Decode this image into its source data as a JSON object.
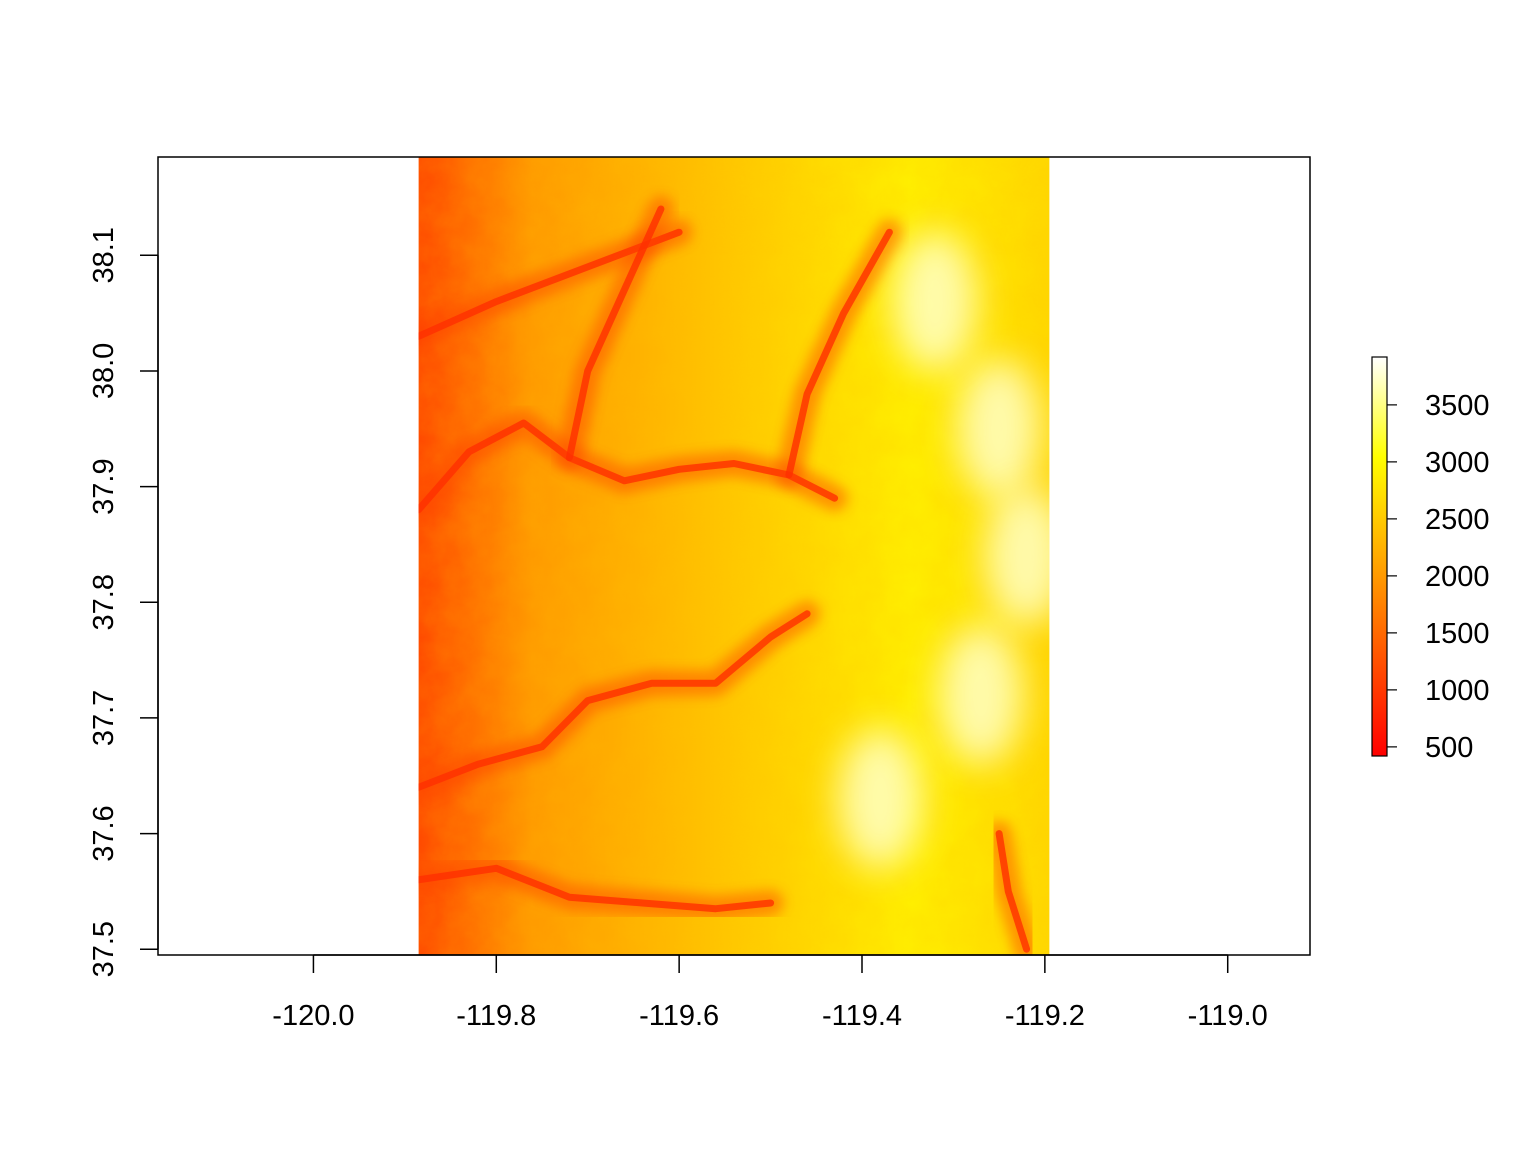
{
  "chart_data": {
    "type": "heatmap",
    "title": "",
    "xlabel": "",
    "ylabel": "",
    "xlim": [
      -120.17,
      -118.91
    ],
    "ylim": [
      37.495,
      38.185
    ],
    "raster_extent": {
      "x": [
        -119.885,
        -119.195
      ],
      "y": [
        37.495,
        38.185
      ]
    },
    "x_ticks": [
      -120.0,
      -119.8,
      -119.6,
      -119.4,
      -119.2,
      -119.0
    ],
    "x_tick_labels": [
      "-120.0",
      "-119.8",
      "-119.6",
      "-119.4",
      "-119.2",
      "-119.0"
    ],
    "y_ticks": [
      37.5,
      37.6,
      37.7,
      37.8,
      37.9,
      38.0,
      38.1
    ],
    "y_tick_labels": [
      "37.5",
      "37.6",
      "37.7",
      "37.8",
      "37.9",
      "38.0",
      "38.1"
    ],
    "colorbar": {
      "range": [
        420,
        3920
      ],
      "ticks": [
        500,
        1000,
        1500,
        2000,
        2500,
        3000,
        3500
      ],
      "tick_labels": [
        "500",
        "1000",
        "1500",
        "2000",
        "2500",
        "3000",
        "3500"
      ],
      "palette": [
        "#ff0000",
        "#ff5500",
        "#ffaa00",
        "#ffff00",
        "#ffffff"
      ]
    },
    "grid": false,
    "legend": "right",
    "features": {
      "valleys": [
        {
          "name": "",
          "points": [
            [
              -119.885,
              37.88
            ],
            [
              -119.83,
              37.93
            ],
            [
              -119.77,
              37.955
            ],
            [
              -119.72,
              37.925
            ],
            [
              -119.66,
              37.905
            ],
            [
              -119.6,
              37.915
            ],
            [
              -119.54,
              37.92
            ],
            [
              -119.48,
              37.91
            ],
            [
              -119.43,
              37.89
            ]
          ]
        },
        {
          "name": "",
          "points": [
            [
              -119.885,
              37.64
            ],
            [
              -119.82,
              37.66
            ],
            [
              -119.75,
              37.675
            ],
            [
              -119.7,
              37.715
            ],
            [
              -119.63,
              37.73
            ],
            [
              -119.56,
              37.73
            ],
            [
              -119.5,
              37.77
            ],
            [
              -119.46,
              37.79
            ]
          ]
        },
        {
          "name": "",
          "points": [
            [
              -119.885,
              37.56
            ],
            [
              -119.8,
              37.57
            ],
            [
              -119.72,
              37.545
            ],
            [
              -119.64,
              37.54
            ],
            [
              -119.56,
              37.535
            ],
            [
              -119.5,
              37.54
            ]
          ]
        },
        {
          "name": "",
          "points": [
            [
              -119.885,
              38.03
            ],
            [
              -119.8,
              38.06
            ],
            [
              -119.7,
              38.09
            ],
            [
              -119.6,
              38.12
            ]
          ]
        },
        {
          "name": "",
          "points": [
            [
              -119.72,
              37.925
            ],
            [
              -119.7,
              38.0
            ],
            [
              -119.66,
              38.07
            ],
            [
              -119.62,
              38.14
            ]
          ]
        },
        {
          "name": "",
          "points": [
            [
              -119.48,
              37.91
            ],
            [
              -119.46,
              37.98
            ],
            [
              -119.42,
              38.05
            ],
            [
              -119.37,
              38.12
            ]
          ]
        },
        {
          "name": "",
          "points": [
            [
              -119.25,
              37.6
            ],
            [
              -119.24,
              37.55
            ],
            [
              -119.22,
              37.5
            ]
          ]
        }
      ],
      "peaks": [
        {
          "name": "",
          "point": [
            -119.27,
            37.72
          ]
        },
        {
          "name": "",
          "point": [
            -119.25,
            37.95
          ]
        },
        {
          "name": "",
          "point": [
            -119.32,
            38.06
          ]
        },
        {
          "name": "",
          "point": [
            -119.38,
            37.63
          ]
        },
        {
          "name": "",
          "point": [
            -119.22,
            37.84
          ]
        }
      ]
    }
  }
}
